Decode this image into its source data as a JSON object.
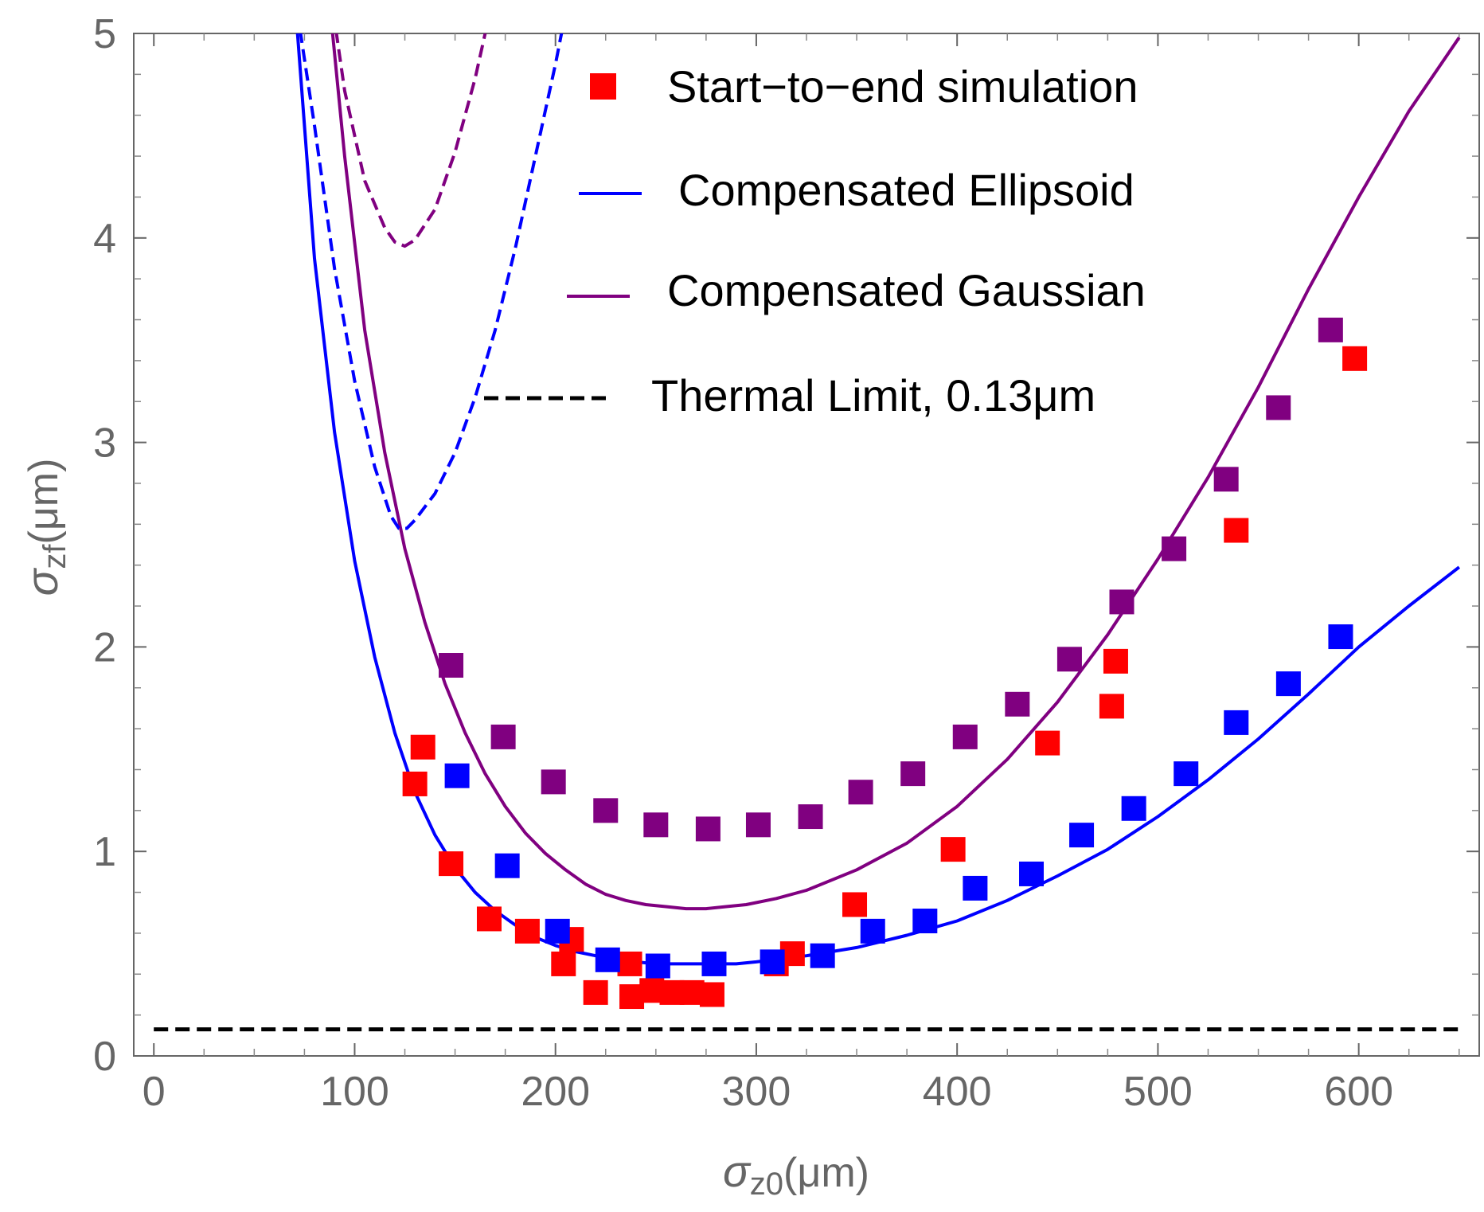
{
  "chart_data": {
    "type": "scatter",
    "xlabel": {
      "symbol": "σ",
      "sub": "z0",
      "unit": "(μm)"
    },
    "ylabel": {
      "symbol": "σ",
      "sub": "zf",
      "unit": "(μm)"
    },
    "xlim": [
      -10,
      660
    ],
    "ylim": [
      0,
      5
    ],
    "xticks": [
      0,
      100,
      200,
      300,
      400,
      500,
      600
    ],
    "yticks": [
      0,
      1,
      2,
      3,
      4,
      5
    ],
    "legend_position": "top-right",
    "legend": [
      {
        "label": "Start−to−end simulation",
        "kind": "marker",
        "color": "#ff0000"
      },
      {
        "label": "Compensated Ellipsoid",
        "kind": "line",
        "color": "#0000ff"
      },
      {
        "label": "Compensated Gaussian",
        "kind": "line",
        "color": "#800080"
      },
      {
        "label": "Thermal Limit, 0.13μm",
        "kind": "dashed",
        "color": "#000000"
      }
    ],
    "series": [
      {
        "name": "Start-to-end simulation (red)",
        "kind": "marker",
        "color": "#ff0000",
        "points": [
          [
            130,
            1.33
          ],
          [
            134,
            1.51
          ],
          [
            148,
            0.94
          ],
          [
            167,
            0.67
          ],
          [
            186,
            0.61
          ],
          [
            204,
            0.45
          ],
          [
            208,
            0.57
          ],
          [
            220,
            0.31
          ],
          [
            237,
            0.45
          ],
          [
            238,
            0.29
          ],
          [
            248,
            0.32
          ],
          [
            258,
            0.31
          ],
          [
            268,
            0.31
          ],
          [
            278,
            0.3
          ],
          [
            310,
            0.45
          ],
          [
            318,
            0.5
          ],
          [
            349,
            0.74
          ],
          [
            398,
            1.01
          ],
          [
            445,
            1.53
          ],
          [
            477,
            1.71
          ],
          [
            479,
            1.93
          ],
          [
            539,
            2.57
          ],
          [
            598,
            3.41
          ]
        ]
      },
      {
        "name": "Compensated Ellipsoid simulation (blue)",
        "kind": "marker",
        "color": "#0000ff",
        "points": [
          [
            151,
            1.37
          ],
          [
            176,
            0.93
          ],
          [
            201,
            0.61
          ],
          [
            226,
            0.47
          ],
          [
            251,
            0.44
          ],
          [
            279,
            0.45
          ],
          [
            308,
            0.46
          ],
          [
            333,
            0.49
          ],
          [
            358,
            0.61
          ],
          [
            384,
            0.66
          ],
          [
            409,
            0.82
          ],
          [
            437,
            0.89
          ],
          [
            462,
            1.08
          ],
          [
            488,
            1.21
          ],
          [
            514,
            1.38
          ],
          [
            539,
            1.63
          ],
          [
            565,
            1.82
          ],
          [
            591,
            2.05
          ]
        ]
      },
      {
        "name": "Compensated Gaussian simulation (purple)",
        "kind": "marker",
        "color": "#800080",
        "points": [
          [
            148,
            1.91
          ],
          [
            174,
            1.56
          ],
          [
            199,
            1.34
          ],
          [
            225,
            1.2
          ],
          [
            250,
            1.13
          ],
          [
            276,
            1.11
          ],
          [
            301,
            1.13
          ],
          [
            327,
            1.17
          ],
          [
            352,
            1.29
          ],
          [
            378,
            1.38
          ],
          [
            404,
            1.56
          ],
          [
            430,
            1.72
          ],
          [
            456,
            1.94
          ],
          [
            482,
            2.22
          ],
          [
            508,
            2.48
          ],
          [
            534,
            2.82
          ],
          [
            560,
            3.17
          ],
          [
            586,
            3.55
          ]
        ]
      },
      {
        "name": "Compensated Ellipsoid",
        "kind": "line",
        "color": "#0000ff",
        "points": [
          [
            70,
            5.2
          ],
          [
            80,
            3.9
          ],
          [
            90,
            3.05
          ],
          [
            100,
            2.42
          ],
          [
            110,
            1.95
          ],
          [
            120,
            1.58
          ],
          [
            130,
            1.29
          ],
          [
            140,
            1.08
          ],
          [
            150,
            0.92
          ],
          [
            160,
            0.8
          ],
          [
            170,
            0.71
          ],
          [
            180,
            0.64
          ],
          [
            190,
            0.58
          ],
          [
            200,
            0.54
          ],
          [
            210,
            0.51
          ],
          [
            220,
            0.49
          ],
          [
            230,
            0.47
          ],
          [
            240,
            0.46
          ],
          [
            250,
            0.45
          ],
          [
            260,
            0.45
          ],
          [
            270,
            0.45
          ],
          [
            280,
            0.45
          ],
          [
            290,
            0.45
          ],
          [
            300,
            0.46
          ],
          [
            325,
            0.49
          ],
          [
            350,
            0.53
          ],
          [
            375,
            0.59
          ],
          [
            400,
            0.66
          ],
          [
            425,
            0.76
          ],
          [
            450,
            0.88
          ],
          [
            475,
            1.01
          ],
          [
            500,
            1.17
          ],
          [
            525,
            1.35
          ],
          [
            550,
            1.55
          ],
          [
            575,
            1.77
          ],
          [
            600,
            2.0
          ],
          [
            625,
            2.2
          ],
          [
            650,
            2.39
          ]
        ]
      },
      {
        "name": "Compensated Gaussian",
        "kind": "line",
        "color": "#800080",
        "points": [
          [
            87,
            5.2
          ],
          [
            95,
            4.4
          ],
          [
            105,
            3.55
          ],
          [
            115,
            2.95
          ],
          [
            125,
            2.48
          ],
          [
            135,
            2.12
          ],
          [
            145,
            1.82
          ],
          [
            155,
            1.58
          ],
          [
            165,
            1.38
          ],
          [
            175,
            1.22
          ],
          [
            185,
            1.09
          ],
          [
            195,
            0.99
          ],
          [
            205,
            0.91
          ],
          [
            215,
            0.84
          ],
          [
            225,
            0.79
          ],
          [
            235,
            0.76
          ],
          [
            245,
            0.74
          ],
          [
            255,
            0.73
          ],
          [
            265,
            0.72
          ],
          [
            275,
            0.72
          ],
          [
            285,
            0.73
          ],
          [
            295,
            0.74
          ],
          [
            310,
            0.77
          ],
          [
            325,
            0.81
          ],
          [
            350,
            0.91
          ],
          [
            375,
            1.04
          ],
          [
            400,
            1.22
          ],
          [
            425,
            1.45
          ],
          [
            450,
            1.73
          ],
          [
            475,
            2.06
          ],
          [
            500,
            2.43
          ],
          [
            525,
            2.83
          ],
          [
            550,
            3.27
          ],
          [
            575,
            3.75
          ],
          [
            600,
            4.2
          ],
          [
            625,
            4.62
          ],
          [
            650,
            4.98
          ]
        ]
      },
      {
        "name": "Ellipsoid (uncompensated)",
        "kind": "dashed",
        "color": "#0000ff",
        "points": [
          [
            70,
            5.2
          ],
          [
            80,
            4.55
          ],
          [
            90,
            3.85
          ],
          [
            100,
            3.3
          ],
          [
            110,
            2.88
          ],
          [
            118,
            2.64
          ],
          [
            122,
            2.58
          ],
          [
            126,
            2.58
          ],
          [
            130,
            2.62
          ],
          [
            140,
            2.75
          ],
          [
            150,
            2.95
          ],
          [
            160,
            3.22
          ],
          [
            170,
            3.55
          ],
          [
            180,
            3.95
          ],
          [
            190,
            4.4
          ],
          [
            200,
            4.85
          ],
          [
            204,
            5.05
          ]
        ]
      },
      {
        "name": "Gaussian (uncompensated)",
        "kind": "dashed",
        "color": "#800080",
        "points": [
          [
            88,
            5.2
          ],
          [
            95,
            4.72
          ],
          [
            105,
            4.28
          ],
          [
            115,
            4.05
          ],
          [
            120,
            3.98
          ],
          [
            125,
            3.96
          ],
          [
            130,
            3.99
          ],
          [
            140,
            4.14
          ],
          [
            150,
            4.42
          ],
          [
            160,
            4.78
          ],
          [
            165,
            5.0
          ],
          [
            168,
            5.15
          ]
        ]
      },
      {
        "name": "Thermal Limit, 0.13μm",
        "kind": "dashed",
        "color": "#000000",
        "points": [
          [
            0,
            0.13
          ],
          [
            650,
            0.13
          ]
        ]
      }
    ]
  }
}
